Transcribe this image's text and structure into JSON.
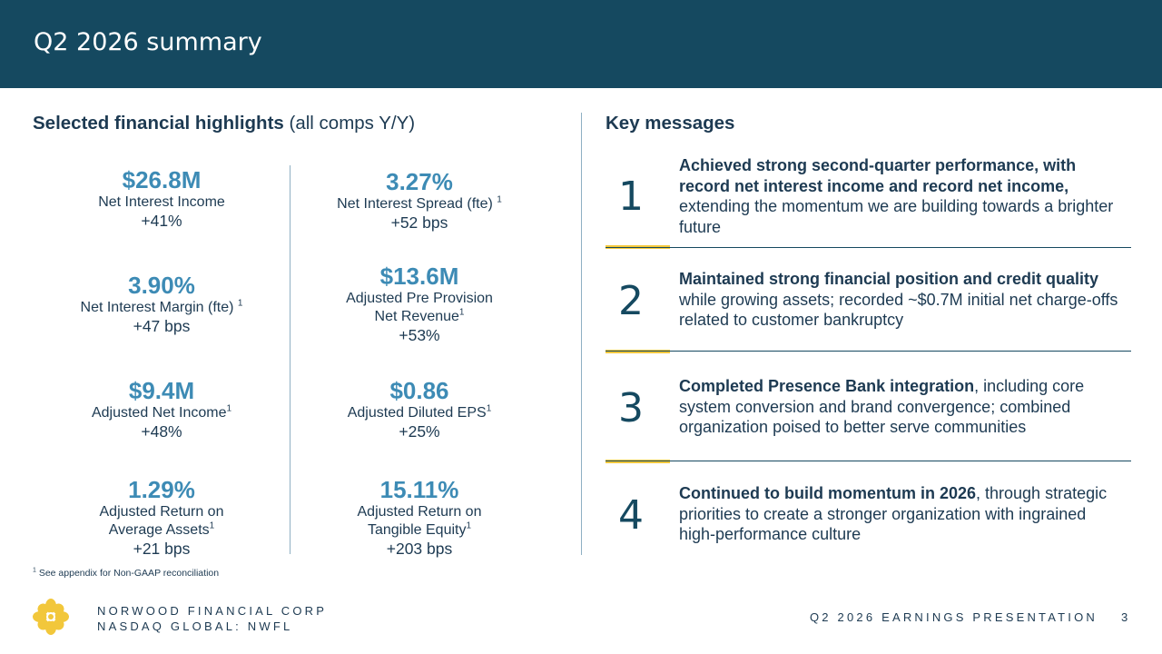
{
  "header": {
    "title": "Q2 2026 summary"
  },
  "highlights": {
    "title_bold": "Selected financial highlights",
    "title_note": " (all comps Y/Y)",
    "metrics": [
      {
        "value": "$26.8M",
        "label": "Net Interest Income",
        "change": "+41%"
      },
      {
        "value": "3.27%",
        "label": "Net Interest Spread (fte)",
        "sup": "1",
        "change": "+52 bps"
      },
      {
        "value": "3.90%",
        "label": "Net Interest Margin (fte)",
        "sup": "1",
        "change": "+47 bps"
      },
      {
        "value": "$13.6M",
        "label_line1": "Adjusted Pre Provision",
        "label_line2": "Net Revenue",
        "sup": "1",
        "change": "+53%"
      },
      {
        "value": "$9.4M",
        "label": "Adjusted Net Income",
        "sup": "1",
        "change": "+48%"
      },
      {
        "value": "$0.86",
        "label": "Adjusted Diluted EPS",
        "sup": "1",
        "change": "+25%"
      },
      {
        "value": "1.29%",
        "label_line1": "Adjusted Return on",
        "label_line2": "Average Assets",
        "sup": "1",
        "change": "+21 bps"
      },
      {
        "value": "15.11%",
        "label_line1": "Adjusted Return on",
        "label_line2": "Tangible Equity",
        "sup": "1",
        "change": "+203 bps"
      }
    ]
  },
  "key_messages": {
    "title": "Key messages",
    "items": [
      {
        "number": "1",
        "bold": "Achieved strong second-quarter performance, with record net interest income and record net income,",
        "text": " extending the momentum we are building towards a brighter future"
      },
      {
        "number": "2",
        "bold": "Maintained strong financial position and credit quality",
        "text": " while growing assets; recorded ~$0.7M initial net charge-offs related to customer bankruptcy"
      },
      {
        "number": "3",
        "bold": "Completed Presence Bank integration",
        "text": ", including core system conversion and brand convergence; combined organization poised to better serve communities"
      },
      {
        "number": "4",
        "bold": "Continued to build momentum in 2026",
        "text": ", through strategic priorities to create a stronger organization with ingrained high-performance culture"
      }
    ]
  },
  "footnote": {
    "sup": "1",
    "text": " See appendix for Non-GAAP reconciliation"
  },
  "footer": {
    "company_line1": "NORWOOD FINANCIAL CORP",
    "company_line2": "NASDAQ GLOBAL: NWFL",
    "presentation": "Q2 2026 EARNINGS PRESENTATION",
    "page": "3",
    "logo_icon": "flower-logo-icon",
    "logo_color": "#f2c73b"
  },
  "colors": {
    "header_bg": "#154960",
    "accent": "#f2c73b",
    "metric_value": "#3d8bb5",
    "text": "#1d3a52"
  }
}
